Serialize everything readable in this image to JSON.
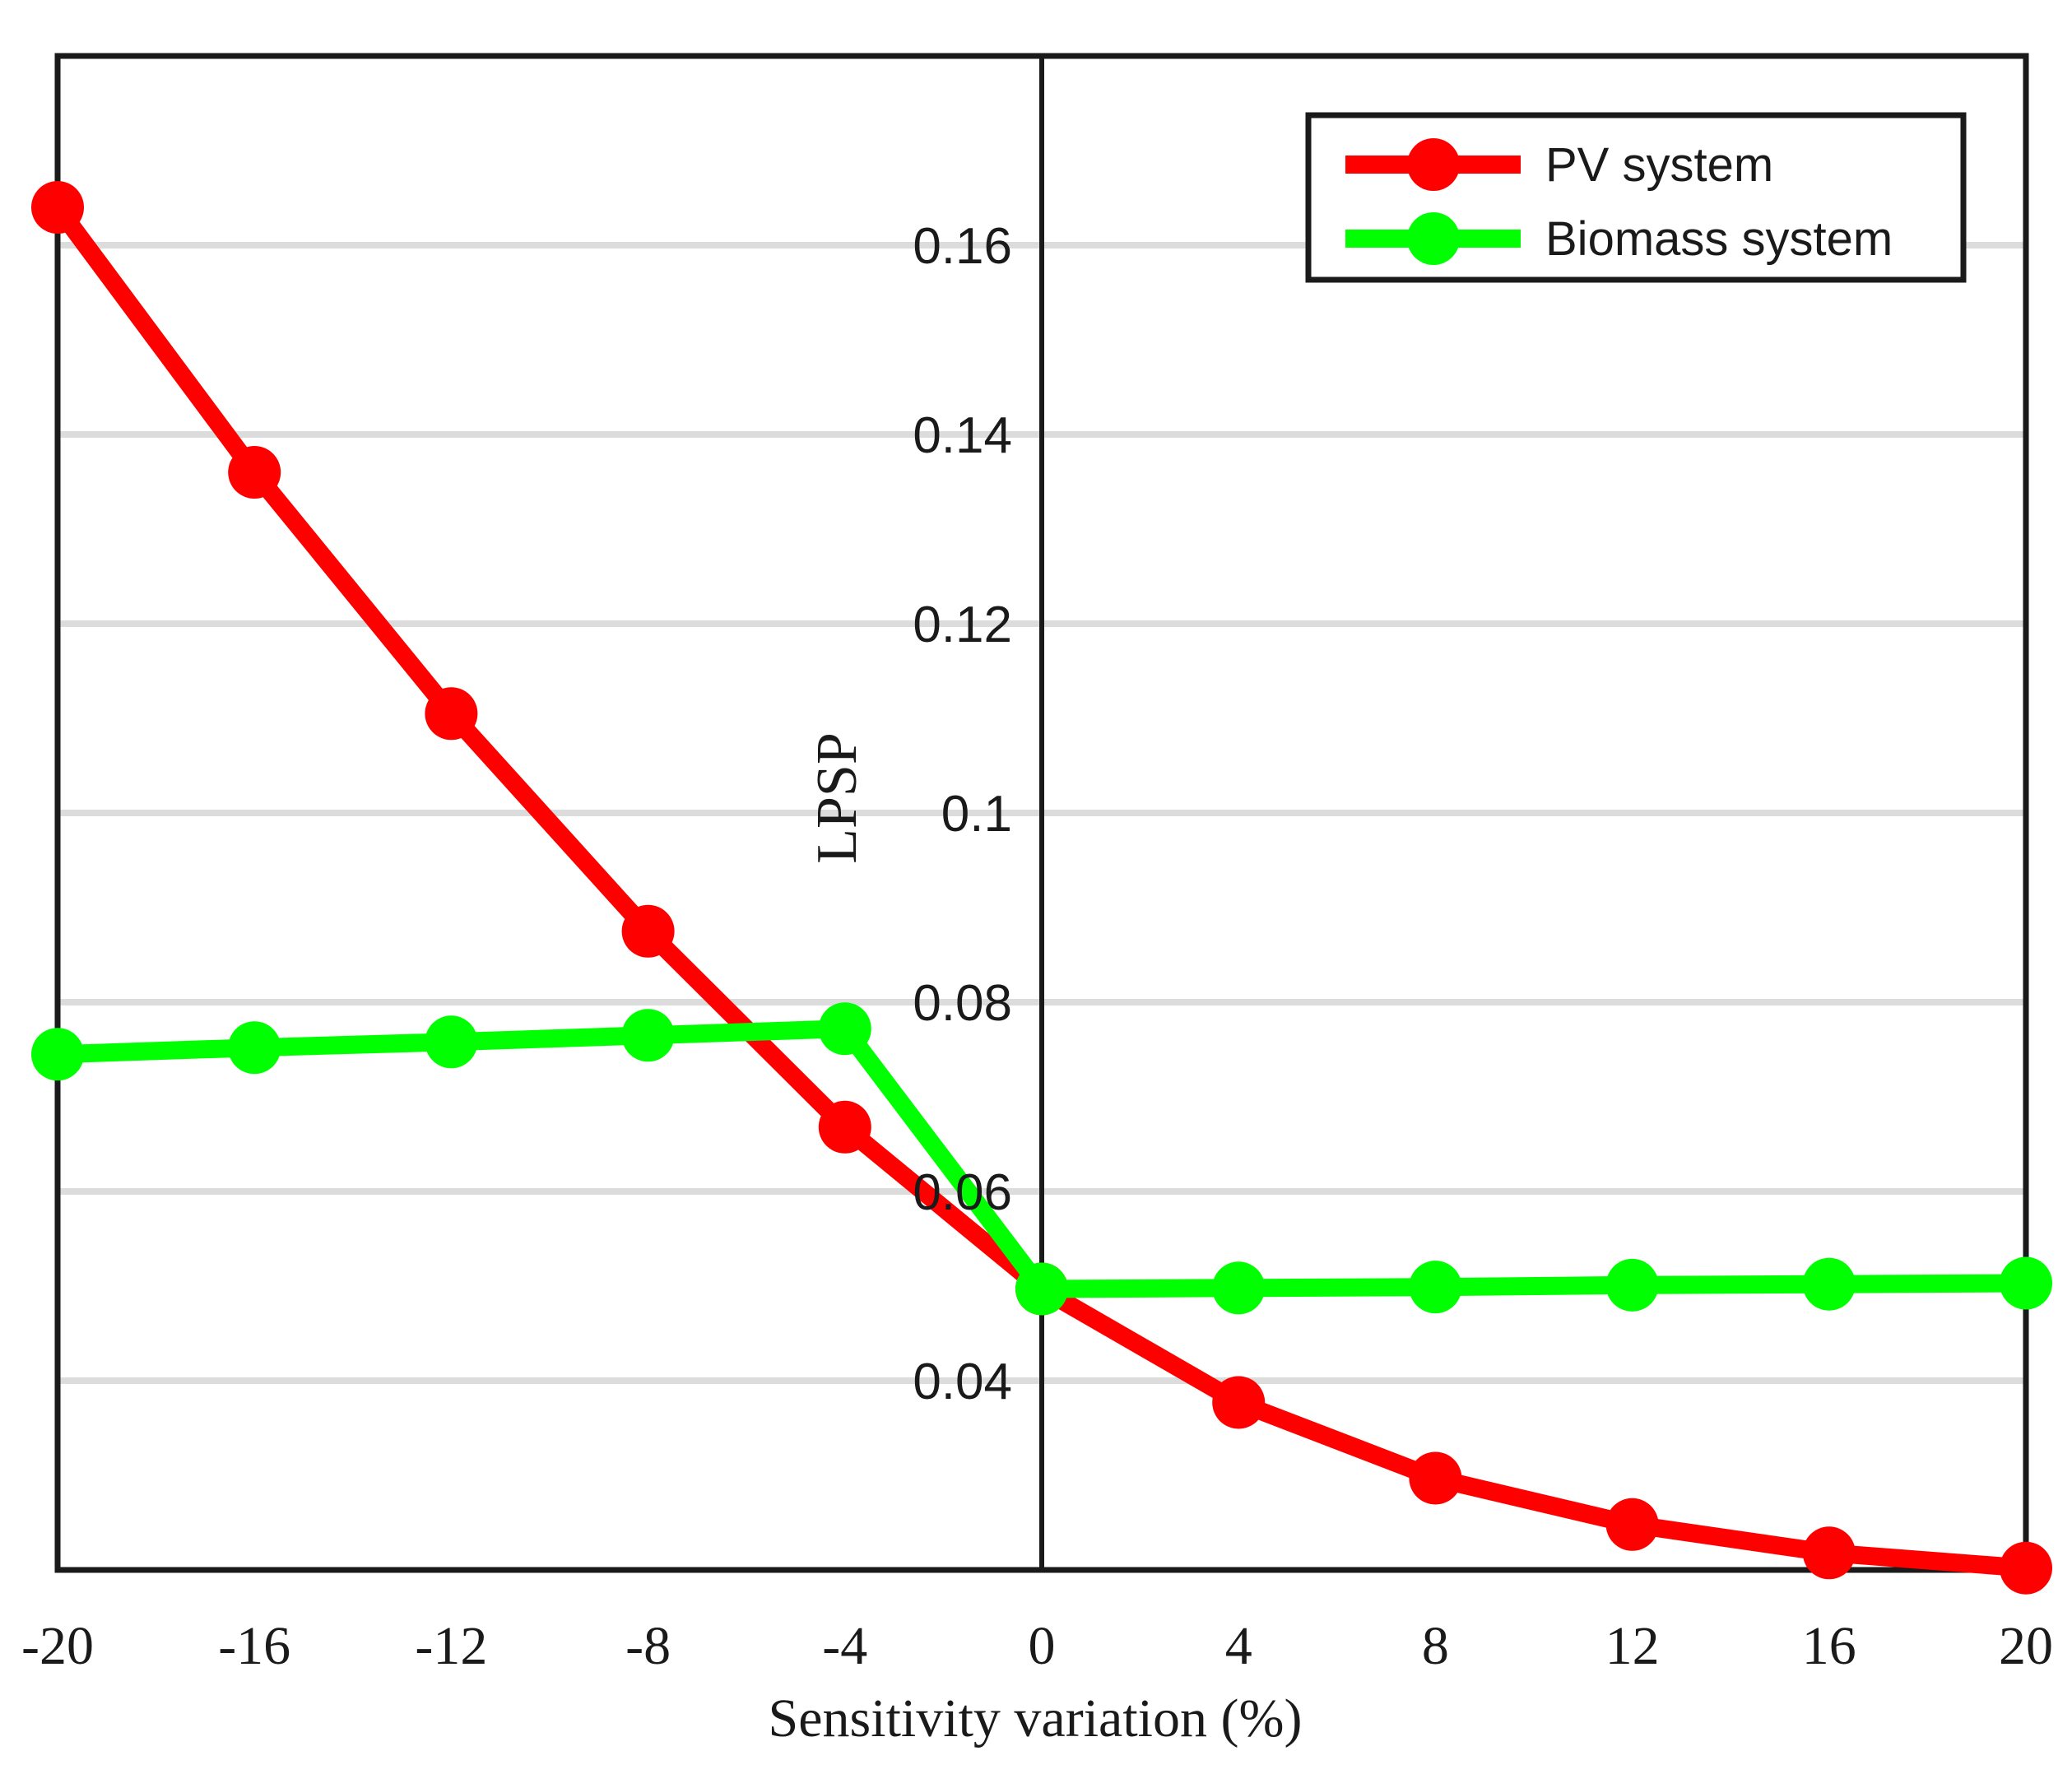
{
  "chart_data": {
    "type": "line",
    "title": "",
    "xlabel": "Sensitivity variation (%)",
    "ylabel": "LPSP",
    "x": [
      -20,
      -16,
      -12,
      -8,
      -4,
      0,
      4,
      8,
      12,
      16,
      20
    ],
    "x_tick_labels": [
      "-20",
      "-16",
      "-12",
      "-8",
      "-4",
      "0",
      "4",
      "8",
      "12",
      "16",
      "20"
    ],
    "xlim": [
      -20,
      20
    ],
    "ylim": [
      0.02,
      0.18
    ],
    "y_ticks": [
      0.04,
      0.06,
      0.08,
      0.1,
      0.12,
      0.14,
      0.16
    ],
    "y_tick_labels": [
      "0.04",
      "0.06",
      "0.08",
      "0.1",
      "0.12",
      "0.14",
      "0.16"
    ],
    "grid": true,
    "legend_position": "top-right",
    "series": [
      {
        "name": "PV system",
        "color": "#ff0000",
        "values": [
          0.164,
          0.136,
          0.1105,
          0.0875,
          0.0668,
          0.0497,
          0.0377,
          0.0297,
          0.0248,
          0.0218,
          0.0202
        ]
      },
      {
        "name": "Biomass system",
        "color": "#00ff00",
        "values": [
          0.0745,
          0.0752,
          0.0758,
          0.0765,
          0.0772,
          0.0497,
          0.0498,
          0.0499,
          0.0501,
          0.0502,
          0.0503
        ]
      }
    ]
  }
}
